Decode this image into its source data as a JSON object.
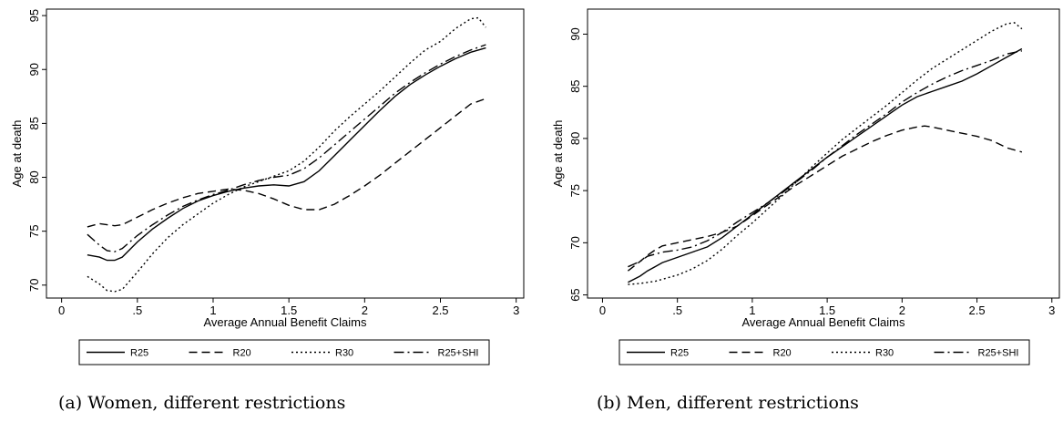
{
  "chart_data": [
    {
      "type": "line",
      "caption": "(a) Women, different restrictions",
      "xlabel": "Average Annual Benefit Claims",
      "ylabel": "Age at death",
      "xlim": [
        -0.1,
        3.05
      ],
      "ylim": [
        68.8,
        95.6
      ],
      "xticks": [
        0,
        0.5,
        1,
        1.5,
        2,
        2.5,
        3
      ],
      "xtick_labels": [
        "0",
        ".5",
        "1",
        "1.5",
        "2",
        "2.5",
        "3"
      ],
      "yticks": [
        70,
        75,
        80,
        85,
        90,
        95
      ],
      "ytick_labels": [
        "70",
        "75",
        "80",
        "85",
        "90",
        "95"
      ],
      "legend_position": "bottom",
      "series": [
        {
          "name": "R25",
          "dash": "solid",
          "x": [
            0.17,
            0.25,
            0.3,
            0.35,
            0.4,
            0.5,
            0.6,
            0.7,
            0.8,
            0.9,
            1.0,
            1.1,
            1.2,
            1.3,
            1.4,
            1.5,
            1.6,
            1.7,
            1.8,
            1.9,
            2.0,
            2.1,
            2.2,
            2.3,
            2.4,
            2.5,
            2.6,
            2.7,
            2.8
          ],
          "y": [
            72.8,
            72.6,
            72.3,
            72.3,
            72.6,
            74.0,
            75.2,
            76.2,
            77.1,
            77.8,
            78.3,
            78.7,
            79.0,
            79.2,
            79.3,
            79.2,
            79.6,
            80.6,
            82.0,
            83.4,
            84.8,
            86.2,
            87.5,
            88.6,
            89.5,
            90.3,
            91.0,
            91.6,
            92.0
          ]
        },
        {
          "name": "R20",
          "dash": "long",
          "x": [
            0.17,
            0.25,
            0.3,
            0.35,
            0.4,
            0.5,
            0.6,
            0.7,
            0.8,
            0.9,
            1.0,
            1.1,
            1.2,
            1.3,
            1.4,
            1.5,
            1.6,
            1.7,
            1.8,
            1.9,
            2.0,
            2.1,
            2.2,
            2.3,
            2.4,
            2.5,
            2.6,
            2.7,
            2.8
          ],
          "y": [
            75.4,
            75.7,
            75.6,
            75.5,
            75.6,
            76.3,
            77.0,
            77.6,
            78.1,
            78.5,
            78.7,
            78.9,
            78.8,
            78.5,
            78.0,
            77.4,
            77.0,
            77.0,
            77.5,
            78.3,
            79.2,
            80.2,
            81.3,
            82.4,
            83.5,
            84.6,
            85.7,
            86.8,
            87.3
          ]
        },
        {
          "name": "R30",
          "dash": "dot",
          "x": [
            0.17,
            0.25,
            0.3,
            0.35,
            0.4,
            0.5,
            0.6,
            0.7,
            0.8,
            0.9,
            1.0,
            1.1,
            1.2,
            1.3,
            1.4,
            1.5,
            1.6,
            1.7,
            1.8,
            1.9,
            2.0,
            2.1,
            2.2,
            2.3,
            2.4,
            2.5,
            2.6,
            2.7,
            2.75,
            2.8
          ],
          "y": [
            70.8,
            70.1,
            69.5,
            69.4,
            69.6,
            71.2,
            72.9,
            74.4,
            75.6,
            76.6,
            77.6,
            78.4,
            79.1,
            79.6,
            80.1,
            80.6,
            81.5,
            82.8,
            84.3,
            85.6,
            86.8,
            88.0,
            89.3,
            90.6,
            91.8,
            92.6,
            93.8,
            94.7,
            94.8,
            93.9
          ]
        },
        {
          "name": "R25+SHI",
          "dash": "dashdot",
          "x": [
            0.17,
            0.25,
            0.3,
            0.35,
            0.4,
            0.5,
            0.6,
            0.7,
            0.8,
            0.9,
            1.0,
            1.1,
            1.2,
            1.3,
            1.4,
            1.5,
            1.6,
            1.7,
            1.8,
            1.9,
            2.0,
            2.1,
            2.2,
            2.3,
            2.4,
            2.5,
            2.6,
            2.7,
            2.8
          ],
          "y": [
            74.7,
            73.7,
            73.2,
            73.1,
            73.4,
            74.6,
            75.6,
            76.5,
            77.3,
            77.9,
            78.4,
            78.8,
            79.3,
            79.7,
            80.0,
            80.2,
            80.8,
            81.8,
            83.0,
            84.2,
            85.4,
            86.6,
            87.8,
            88.8,
            89.7,
            90.5,
            91.2,
            91.8,
            92.3
          ]
        }
      ]
    },
    {
      "type": "line",
      "caption": "(b) Men, different restrictions",
      "xlabel": "Average Annual Benefit Claims",
      "ylabel": "Age at death",
      "xlim": [
        -0.1,
        3.05
      ],
      "ylim": [
        64.7,
        92.4
      ],
      "xticks": [
        0,
        0.5,
        1,
        1.5,
        2,
        2.5,
        3
      ],
      "xtick_labels": [
        "0",
        ".5",
        "1",
        "1.5",
        "2",
        "2.5",
        "3"
      ],
      "yticks": [
        65,
        70,
        75,
        80,
        85,
        90
      ],
      "ytick_labels": [
        "65",
        "70",
        "75",
        "80",
        "85",
        "90"
      ],
      "legend_position": "bottom",
      "series": [
        {
          "name": "R25",
          "dash": "solid",
          "x": [
            0.17,
            0.25,
            0.3,
            0.35,
            0.4,
            0.5,
            0.6,
            0.7,
            0.8,
            0.9,
            1.0,
            1.1,
            1.2,
            1.3,
            1.4,
            1.5,
            1.6,
            1.7,
            1.8,
            1.9,
            2.0,
            2.1,
            2.2,
            2.3,
            2.4,
            2.5,
            2.6,
            2.7,
            2.8
          ],
          "y": [
            66.2,
            66.8,
            67.3,
            67.7,
            68.1,
            68.6,
            69.1,
            69.6,
            70.5,
            71.6,
            72.7,
            73.8,
            74.9,
            76.0,
            77.1,
            78.2,
            79.2,
            80.2,
            81.2,
            82.2,
            83.2,
            84.0,
            84.5,
            85.0,
            85.5,
            86.2,
            87.0,
            87.8,
            88.6
          ]
        },
        {
          "name": "R20",
          "dash": "long",
          "x": [
            0.17,
            0.25,
            0.3,
            0.35,
            0.4,
            0.5,
            0.6,
            0.7,
            0.8,
            0.9,
            1.0,
            1.1,
            1.2,
            1.3,
            1.4,
            1.5,
            1.6,
            1.7,
            1.8,
            1.9,
            2.0,
            2.1,
            2.15,
            2.2,
            2.3,
            2.4,
            2.5,
            2.6,
            2.7,
            2.8
          ],
          "y": [
            67.3,
            68.2,
            68.8,
            69.3,
            69.7,
            70.0,
            70.3,
            70.6,
            71.0,
            71.6,
            72.6,
            73.6,
            74.6,
            75.6,
            76.5,
            77.4,
            78.3,
            79.0,
            79.7,
            80.3,
            80.8,
            81.1,
            81.2,
            81.1,
            80.8,
            80.5,
            80.2,
            79.8,
            79.1,
            78.7
          ]
        },
        {
          "name": "R30",
          "dash": "dot",
          "x": [
            0.17,
            0.25,
            0.3,
            0.35,
            0.4,
            0.5,
            0.6,
            0.7,
            0.8,
            0.9,
            1.0,
            1.1,
            1.2,
            1.3,
            1.4,
            1.5,
            1.6,
            1.7,
            1.8,
            1.9,
            2.0,
            2.1,
            2.2,
            2.3,
            2.4,
            2.5,
            2.6,
            2.7,
            2.75,
            2.8
          ],
          "y": [
            66.0,
            66.1,
            66.2,
            66.3,
            66.5,
            66.9,
            67.5,
            68.3,
            69.4,
            70.7,
            71.9,
            73.2,
            74.5,
            75.9,
            77.3,
            78.6,
            79.9,
            81.0,
            82.1,
            83.2,
            84.4,
            85.6,
            86.7,
            87.6,
            88.5,
            89.4,
            90.3,
            91.0,
            91.1,
            90.5
          ]
        },
        {
          "name": "R25+SHI",
          "dash": "dashdot",
          "x": [
            0.17,
            0.25,
            0.3,
            0.35,
            0.4,
            0.5,
            0.6,
            0.7,
            0.8,
            0.9,
            1.0,
            1.1,
            1.2,
            1.3,
            1.4,
            1.5,
            1.6,
            1.7,
            1.8,
            1.9,
            2.0,
            2.1,
            2.2,
            2.3,
            2.4,
            2.5,
            2.6,
            2.7,
            2.8
          ],
          "y": [
            67.7,
            68.2,
            68.7,
            68.9,
            69.1,
            69.3,
            69.6,
            70.2,
            71.0,
            72.0,
            72.9,
            73.8,
            74.8,
            75.9,
            77.0,
            78.2,
            79.3,
            80.4,
            81.4,
            82.4,
            83.5,
            84.4,
            85.2,
            85.9,
            86.5,
            87.0,
            87.5,
            88.1,
            88.4
          ]
        }
      ]
    }
  ]
}
